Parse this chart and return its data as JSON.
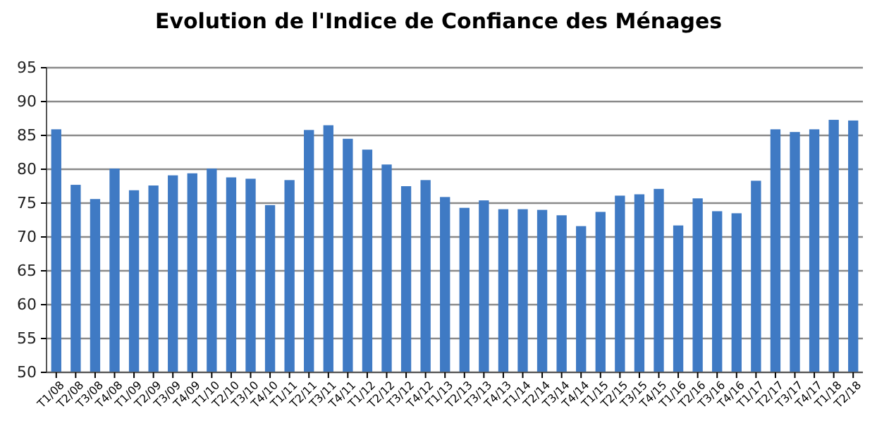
{
  "chart_data": {
    "type": "bar",
    "title": "Evolution de l'Indice de Confiance des Ménages",
    "categories": [
      "T1/08",
      "T2/08",
      "T3/08",
      "T4/08",
      "T1/09",
      "T2/09",
      "T3/09",
      "T4/09",
      "T1/10",
      "T2/10",
      "T3/10",
      "T4/10",
      "T1/11",
      "T2/11",
      "T3/11",
      "T4/11",
      "T1/12",
      "T2/12",
      "T3/12",
      "T4/12",
      "T1/13",
      "T2/13",
      "T3/13",
      "T4/13",
      "T1/14",
      "T2/14",
      "T3/14",
      "T4/14",
      "T1/15",
      "T2/15",
      "T3/15",
      "T4/15",
      "T1/16",
      "T2/16",
      "T3/16",
      "T4/16",
      "T1/17",
      "T2/17",
      "T3/17",
      "T4/17",
      "T1/18",
      "T2/18"
    ],
    "values": [
      85.9,
      77.7,
      75.6,
      80.1,
      76.9,
      77.6,
      79.1,
      79.4,
      80.1,
      78.8,
      78.6,
      74.7,
      78.4,
      85.8,
      86.5,
      84.5,
      82.9,
      80.7,
      77.5,
      78.4,
      75.9,
      74.3,
      75.4,
      74.1,
      74.1,
      74.0,
      73.2,
      71.6,
      73.7,
      76.1,
      76.3,
      77.1,
      71.7,
      75.7,
      73.8,
      73.5,
      78.3,
      85.9,
      85.5,
      85.9,
      87.3,
      87.2
    ],
    "color": "#3f7ac4",
    "ylim": [
      50,
      95
    ],
    "yticks": [
      50,
      55,
      60,
      65,
      70,
      75,
      80,
      85,
      90,
      95
    ],
    "grid": "y"
  }
}
